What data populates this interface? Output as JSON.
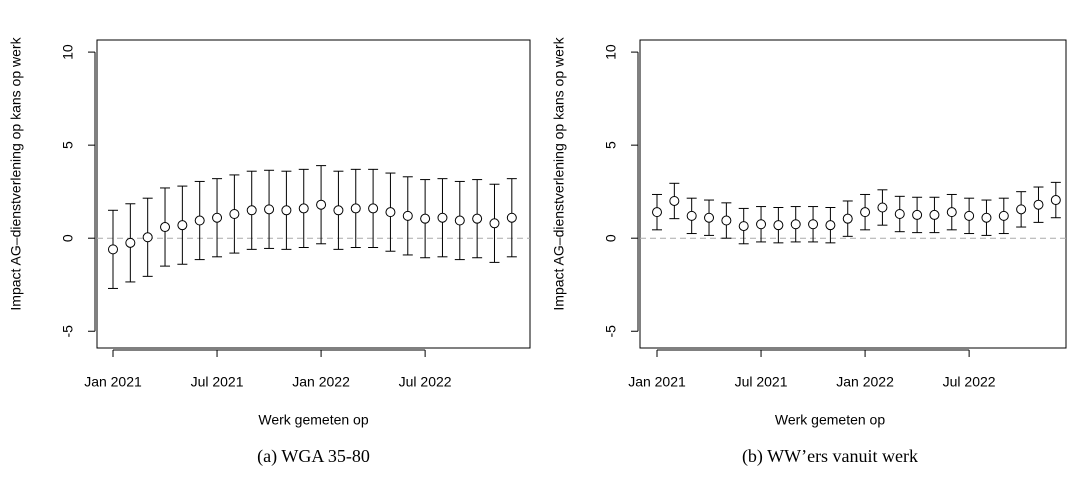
{
  "chart_data": [
    {
      "type": "errorbar",
      "caption": "(a) WGA 35-80",
      "xlabel": "Werk gemeten op",
      "ylabel": "Impact AG–dienstverlening op kans op werk",
      "categories": [
        "Jan 2021",
        null,
        null,
        null,
        null,
        null,
        "Jul 2021",
        null,
        null,
        null,
        null,
        null,
        "Jan 2022",
        null,
        null,
        null,
        null,
        null,
        "Jul 2022",
        null,
        null,
        null,
        null,
        null
      ],
      "values": [
        -0.6,
        -0.25,
        0.05,
        0.6,
        0.7,
        0.95,
        1.1,
        1.3,
        1.5,
        1.55,
        1.5,
        1.6,
        1.8,
        1.5,
        1.6,
        1.6,
        1.4,
        1.2,
        1.05,
        1.1,
        0.95,
        1.05,
        0.8,
        1.1
      ],
      "errors": [
        2.1,
        2.1,
        2.1,
        2.1,
        2.1,
        2.1,
        2.1,
        2.1,
        2.1,
        2.1,
        2.1,
        2.1,
        2.1,
        2.1,
        2.1,
        2.1,
        2.1,
        2.1,
        2.1,
        2.1,
        2.1,
        2.1,
        2.1,
        2.1
      ],
      "reference_line": 0,
      "color": "#000000",
      "ylim": [
        -5.9,
        10.65
      ],
      "yticks": [
        -5,
        0,
        5,
        10
      ]
    },
    {
      "type": "errorbar",
      "caption": "(b) WW’ers vanuit werk",
      "xlabel": "Werk gemeten op",
      "ylabel": "Impact AG–dienstverlening op kans op werk",
      "categories": [
        "Jan 2021",
        null,
        null,
        null,
        null,
        null,
        "Jul 2021",
        null,
        null,
        null,
        null,
        null,
        "Jan 2022",
        null,
        null,
        null,
        null,
        null,
        "Jul 2022",
        null,
        null,
        null,
        null,
        null
      ],
      "values": [
        1.4,
        2.0,
        1.2,
        1.1,
        0.95,
        0.65,
        0.75,
        0.7,
        0.75,
        0.75,
        0.7,
        1.05,
        1.4,
        1.65,
        1.3,
        1.25,
        1.25,
        1.4,
        1.2,
        1.1,
        1.2,
        1.55,
        1.8,
        2.05
      ],
      "errors": [
        0.95,
        0.95,
        0.95,
        0.95,
        0.95,
        0.95,
        0.95,
        0.95,
        0.95,
        0.95,
        0.95,
        0.95,
        0.95,
        0.95,
        0.95,
        0.95,
        0.95,
        0.95,
        0.95,
        0.95,
        0.95,
        0.95,
        0.95,
        0.95
      ],
      "reference_line": 0,
      "color": "#000000",
      "ylim": [
        -5.9,
        10.65
      ],
      "yticks": [
        -5,
        0,
        5,
        10
      ]
    }
  ]
}
